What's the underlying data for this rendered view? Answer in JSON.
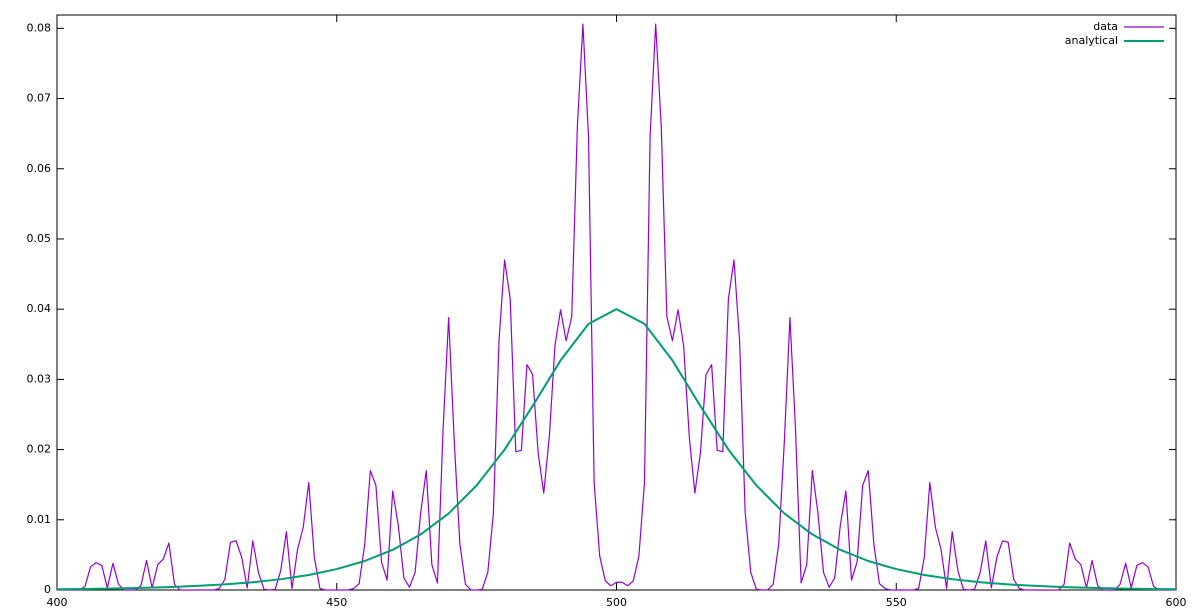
{
  "chart_data": {
    "type": "line",
    "xlim": [
      400,
      600
    ],
    "xticks": [
      400,
      450,
      500,
      550,
      600
    ],
    "ylim": [
      0,
      0.0819
    ],
    "yticks": [
      0,
      0.01,
      0.02,
      0.03,
      0.04,
      0.05,
      0.06,
      0.07,
      0.08
    ],
    "legend": "top-right",
    "series": [
      {
        "name": "data",
        "color": "#9400d3",
        "x": [
          400,
          401,
          402,
          403,
          404,
          405,
          406,
          407,
          408,
          409,
          410,
          411,
          412,
          413,
          414,
          415,
          416,
          417,
          418,
          419,
          420,
          421,
          422,
          423,
          424,
          425,
          426,
          427,
          428,
          429,
          430,
          431,
          432,
          433,
          434,
          435,
          436,
          437,
          438,
          439,
          440,
          441,
          442,
          443,
          444,
          445,
          446,
          447,
          448,
          449,
          450,
          451,
          452,
          453,
          454,
          455,
          456,
          457,
          458,
          459,
          460,
          461,
          462,
          463,
          464,
          465,
          466,
          467,
          468,
          469,
          470,
          471,
          472,
          473,
          474,
          475,
          476,
          477,
          478,
          479,
          480,
          481,
          482,
          483,
          484,
          485,
          486,
          487,
          488,
          489,
          490,
          491,
          492,
          493,
          494,
          495,
          496,
          497,
          498,
          499,
          500,
          501,
          502,
          503,
          504,
          505,
          506,
          507,
          508,
          509,
          510,
          511,
          512,
          513,
          514,
          515,
          516,
          517,
          518,
          519,
          520,
          521,
          522,
          523,
          524,
          525,
          526,
          527,
          528,
          529,
          530,
          531,
          532,
          533,
          534,
          535,
          536,
          537,
          538,
          539,
          540,
          541,
          542,
          543,
          544,
          545,
          546,
          547,
          548,
          549,
          550,
          551,
          552,
          553,
          554,
          555,
          556,
          557,
          558,
          559,
          560,
          561,
          562,
          563,
          564,
          565,
          566,
          567,
          568,
          569,
          570,
          571,
          572,
          573,
          574,
          575,
          576,
          577,
          578,
          579,
          580,
          581,
          582,
          583,
          584,
          585,
          586,
          587,
          588,
          589,
          590,
          591,
          592,
          593,
          594,
          595,
          596,
          597,
          598,
          599,
          600
        ],
        "values": [
          0,
          0,
          0,
          0,
          0,
          0.0005,
          0.0033,
          0.0039,
          0.0035,
          0.0003,
          0.0038,
          0.0008,
          0,
          0,
          0,
          0.0006,
          0.0042,
          0.0003,
          0.0036,
          0.0044,
          0.0067,
          0.0008,
          0,
          0,
          0,
          0,
          0,
          0,
          0,
          0.0002,
          0.0015,
          0.0068,
          0.007,
          0.0047,
          0.0003,
          0.007,
          0.0025,
          0.0001,
          0,
          0.0001,
          0.0028,
          0.0083,
          0.0002,
          0.0058,
          0.0089,
          0.0153,
          0.0046,
          0.0002,
          0,
          0,
          0,
          0,
          0,
          0.0002,
          0.0009,
          0.0065,
          0.017,
          0.0149,
          0.004,
          0.0014,
          0.0141,
          0.0092,
          0.0017,
          0.0004,
          0.0025,
          0.011,
          0.017,
          0.0036,
          0.001,
          0.0228,
          0.0388,
          0.0212,
          0.0066,
          0.0008,
          0,
          0,
          0.0001,
          0.0025,
          0.011,
          0.0355,
          0.047,
          0.0415,
          0.0197,
          0.0199,
          0.0321,
          0.0307,
          0.0195,
          0.0138,
          0.0219,
          0.0348,
          0.0399,
          0.0355,
          0.0389,
          0.066,
          0.0806,
          0.0645,
          0.0153,
          0.0048,
          0.0013,
          0.0006,
          0.0011,
          0.0011,
          0.0006,
          0.0013,
          0.0048,
          0.0153,
          0.0645,
          0.0806,
          0.066,
          0.0389,
          0.0355,
          0.0399,
          0.0348,
          0.0219,
          0.0138,
          0.0195,
          0.0307,
          0.0321,
          0.0199,
          0.0197,
          0.0415,
          0.047,
          0.0355,
          0.011,
          0.0025,
          0.0001,
          0,
          0,
          0.0008,
          0.0066,
          0.0212,
          0.0388,
          0.0228,
          0.001,
          0.0036,
          0.017,
          0.011,
          0.0025,
          0.0004,
          0.0017,
          0.0092,
          0.0141,
          0.0014,
          0.004,
          0.0149,
          0.017,
          0.0065,
          0.0009,
          0.0002,
          0,
          0,
          0,
          0,
          0,
          0.0002,
          0.0046,
          0.0153,
          0.0089,
          0.0058,
          0.0002,
          0.0083,
          0.0028,
          0.0001,
          0,
          0.0001,
          0.0025,
          0.007,
          0.0003,
          0.0047,
          0.007,
          0.0068,
          0.0015,
          0.0002,
          0,
          0,
          0,
          0,
          0,
          0,
          0,
          0.0008,
          0.0067,
          0.0044,
          0.0036,
          0.0003,
          0.0042,
          0.0006,
          0,
          0,
          0,
          0.0008,
          0.0038,
          0.0003,
          0.0035,
          0.0039,
          0.0033,
          0.0005,
          0,
          0,
          0,
          0
        ]
      },
      {
        "name": "analytical",
        "color": "#009e73",
        "x": [
          400,
          405,
          410,
          415,
          420,
          425,
          430,
          435,
          440,
          445,
          450,
          455,
          460,
          465,
          470,
          475,
          480,
          485,
          490,
          495,
          500,
          505,
          510,
          515,
          520,
          525,
          530,
          535,
          540,
          545,
          550,
          555,
          560,
          565,
          570,
          575,
          580,
          585,
          590,
          595,
          600
        ],
        "values": [
          0.00011,
          0.00015,
          0.00021,
          0.0003,
          0.00041,
          0.00058,
          0.0008,
          0.00111,
          0.00154,
          0.00214,
          0.00298,
          0.00413,
          0.00572,
          0.00792,
          0.0109,
          0.0149,
          0.02,
          0.0262,
          0.0327,
          0.0379,
          0.04,
          0.0379,
          0.0327,
          0.0262,
          0.02,
          0.0149,
          0.0109,
          0.00792,
          0.00572,
          0.00413,
          0.00298,
          0.00214,
          0.00154,
          0.00111,
          0.0008,
          0.00058,
          0.00041,
          0.0003,
          0.00021,
          0.00015,
          0.00011
        ]
      }
    ]
  }
}
